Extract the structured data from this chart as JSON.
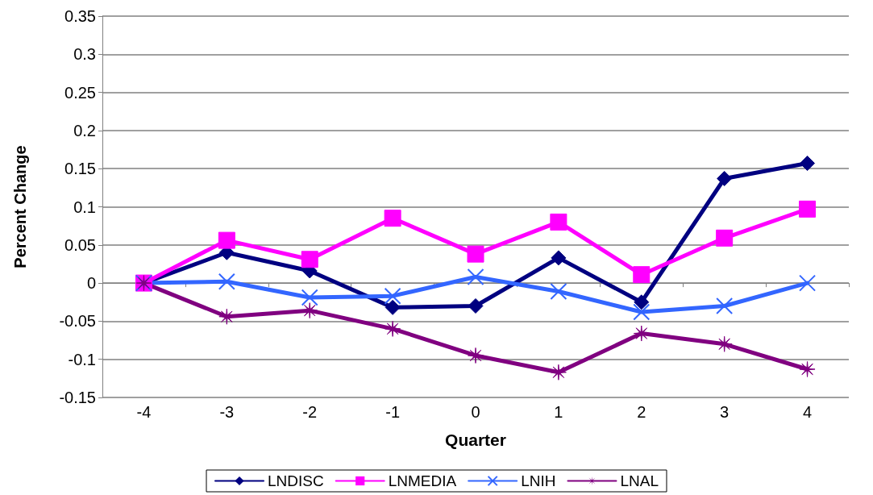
{
  "chart_data": {
    "type": "line",
    "xlabel": "Quarter",
    "ylabel": "Percent Change",
    "categories": [
      "-4",
      "-3",
      "-2",
      "-1",
      "0",
      "1",
      "2",
      "3",
      "4"
    ],
    "series": [
      {
        "name": "LNDISC",
        "color": "#000080",
        "marker": "diamond",
        "values": [
          0,
          0.04,
          0.016,
          -0.032,
          -0.03,
          0.033,
          -0.025,
          0.137,
          0.157
        ]
      },
      {
        "name": "LNMEDIA",
        "color": "#ff00ff",
        "marker": "square",
        "values": [
          0,
          0.056,
          0.031,
          0.085,
          0.038,
          0.08,
          0.011,
          0.059,
          0.097
        ]
      },
      {
        "name": "LNIH",
        "color": "#3366ff",
        "marker": "cross",
        "values": [
          0,
          0.002,
          -0.019,
          -0.017,
          0.008,
          -0.011,
          -0.038,
          -0.03,
          0
        ]
      },
      {
        "name": "LNAL",
        "color": "#800080",
        "marker": "star",
        "values": [
          0,
          -0.044,
          -0.036,
          -0.06,
          -0.095,
          -0.117,
          -0.066,
          -0.08,
          -0.113
        ]
      }
    ],
    "ylim": [
      -0.15,
      0.35
    ],
    "yticks": [
      -0.15,
      -0.1,
      -0.05,
      0,
      0.05,
      0.1,
      0.15,
      0.2,
      0.25,
      0.3,
      0.35
    ],
    "grid": "y",
    "legend": "bottom",
    "line_style": "solid"
  }
}
